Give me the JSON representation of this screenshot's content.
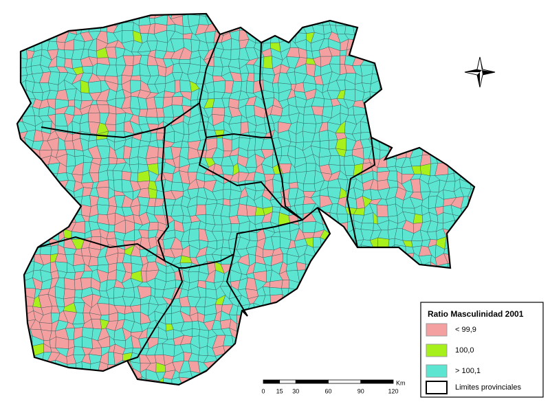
{
  "legend": {
    "title": "Ratio Masculinidad 2001",
    "items": [
      "< 99,9",
      "100,0",
      "> 100,1",
      "Limites provinciales"
    ]
  },
  "scale": {
    "unit": "Km",
    "ticks": [
      0,
      15,
      30,
      60,
      90,
      120
    ]
  }
}
